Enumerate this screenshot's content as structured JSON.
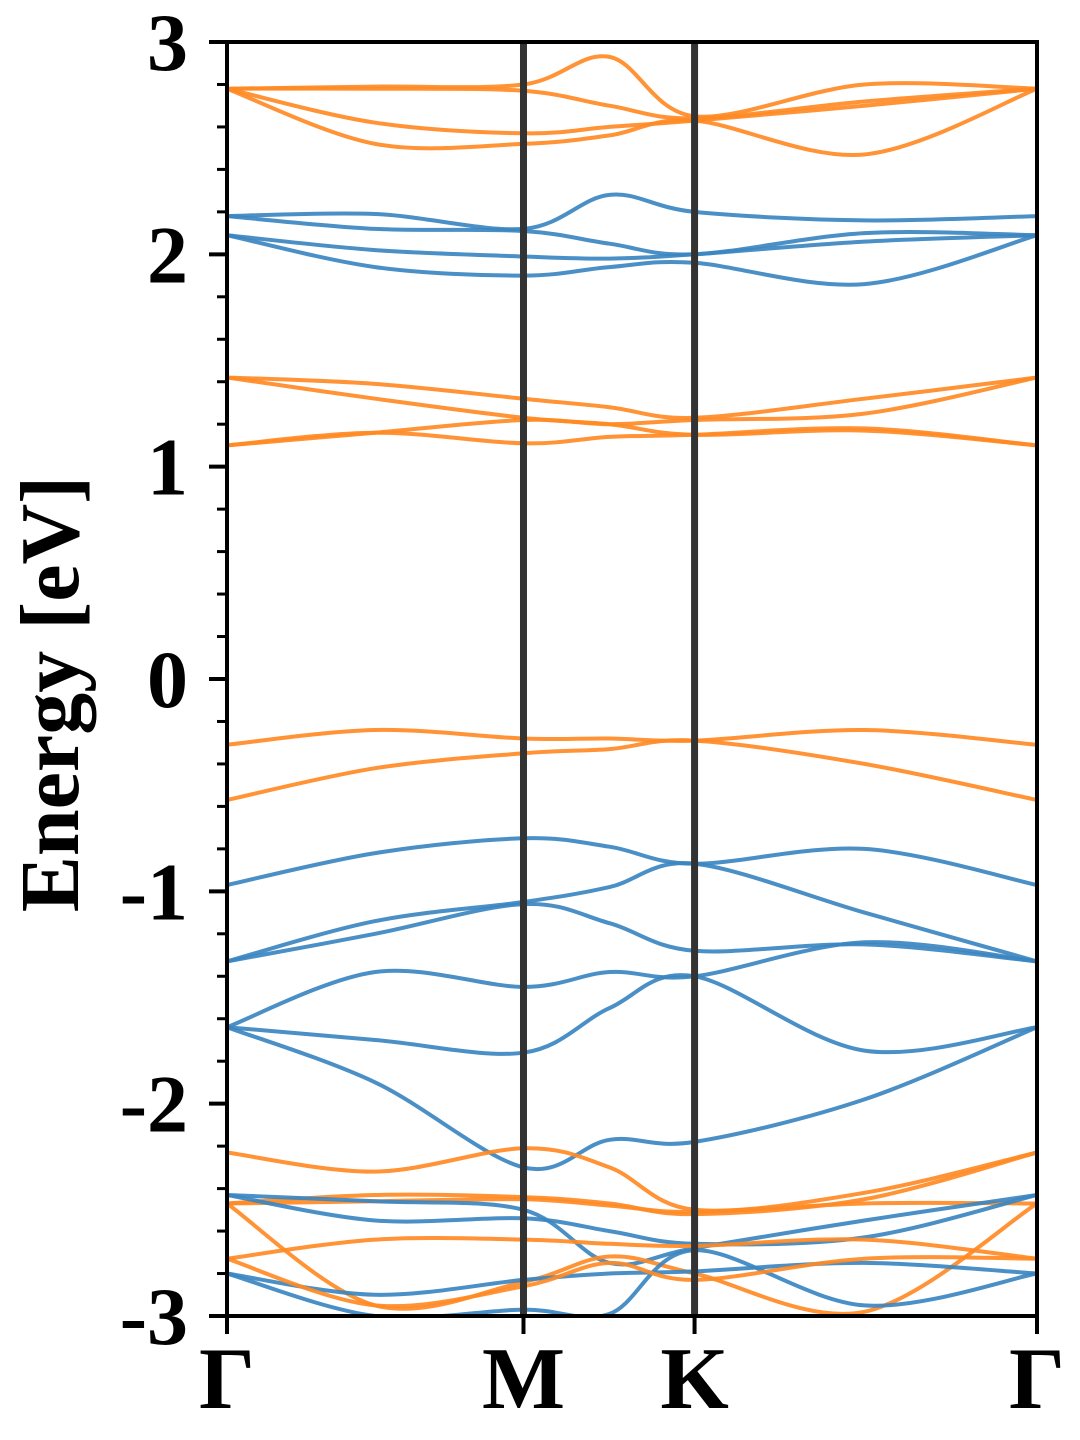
{
  "chart_data": {
    "type": "line",
    "title": "",
    "ylabel": "Energy [eV]",
    "xlabel": "",
    "ylim": [
      -3,
      3
    ],
    "yticks": [
      {
        "value": 3,
        "label": "3"
      },
      {
        "value": 2,
        "label": "2"
      },
      {
        "value": 1,
        "label": "1"
      },
      {
        "value": 0,
        "label": "0"
      },
      {
        "value": -1,
        "label": "-1"
      },
      {
        "value": -2,
        "label": "-2"
      },
      {
        "value": -3,
        "label": "-3"
      }
    ],
    "minor_ytick_step": 0.2,
    "high_symmetry_points": [
      {
        "label": "Γ",
        "k": 0.0
      },
      {
        "label": "M",
        "k": 1.0
      },
      {
        "label": "K",
        "k": 1.577
      },
      {
        "label": "Γ",
        "k": 2.732
      }
    ],
    "colors": {
      "blue": "#3b86c0",
      "orange": "#ff8a24",
      "kline": "#333333"
    },
    "k_nodes": [
      0.0,
      0.5,
      1.0,
      1.29,
      1.577,
      2.15,
      2.732
    ],
    "bands": [
      {
        "color": "orange",
        "energies": [
          2.78,
          2.79,
          2.8,
          2.93,
          2.65,
          2.8,
          2.78
        ]
      },
      {
        "color": "orange",
        "energies": [
          2.78,
          2.78,
          2.77,
          2.7,
          2.64,
          2.72,
          2.78
        ]
      },
      {
        "color": "orange",
        "energies": [
          2.78,
          2.62,
          2.57,
          2.6,
          2.63,
          2.7,
          2.78
        ]
      },
      {
        "color": "orange",
        "energies": [
          2.78,
          2.52,
          2.52,
          2.56,
          2.63,
          2.47,
          2.78
        ]
      },
      {
        "color": "blue",
        "energies": [
          2.18,
          2.19,
          2.12,
          2.28,
          2.2,
          2.16,
          2.18
        ]
      },
      {
        "color": "blue",
        "energies": [
          2.18,
          2.12,
          2.11,
          2.05,
          2.0,
          2.1,
          2.09
        ]
      },
      {
        "color": "blue",
        "energies": [
          2.09,
          2.02,
          1.99,
          1.98,
          2.0,
          2.06,
          2.09
        ]
      },
      {
        "color": "blue",
        "energies": [
          2.09,
          1.94,
          1.9,
          1.94,
          1.96,
          1.86,
          2.09
        ]
      },
      {
        "color": "orange",
        "energies": [
          1.42,
          1.39,
          1.32,
          1.28,
          1.23,
          1.32,
          1.42
        ]
      },
      {
        "color": "orange",
        "energies": [
          1.42,
          1.32,
          1.23,
          1.2,
          1.15,
          1.17,
          1.1
        ]
      },
      {
        "color": "orange",
        "energies": [
          1.1,
          1.16,
          1.22,
          1.2,
          1.22,
          1.25,
          1.42
        ]
      },
      {
        "color": "orange",
        "energies": [
          1.1,
          1.16,
          1.11,
          1.14,
          1.15,
          1.18,
          1.1
        ]
      },
      {
        "color": "orange",
        "energies": [
          -0.31,
          -0.24,
          -0.28,
          -0.28,
          -0.29,
          -0.24,
          -0.31
        ]
      },
      {
        "color": "orange",
        "energies": [
          -0.57,
          -0.42,
          -0.35,
          -0.33,
          -0.29,
          -0.4,
          -0.57
        ]
      },
      {
        "color": "blue",
        "energies": [
          -0.97,
          -0.82,
          -0.75,
          -0.79,
          -0.87,
          -0.8,
          -0.97
        ]
      },
      {
        "color": "blue",
        "energies": [
          -1.33,
          -1.14,
          -1.05,
          -0.98,
          -0.87,
          -1.1,
          -1.33
        ]
      },
      {
        "color": "blue",
        "energies": [
          -1.33,
          -1.2,
          -1.06,
          -1.15,
          -1.28,
          -1.25,
          -1.33
        ]
      },
      {
        "color": "blue",
        "energies": [
          -1.64,
          -1.38,
          -1.45,
          -1.38,
          -1.4,
          -1.24,
          -1.33
        ]
      },
      {
        "color": "blue",
        "energies": [
          -1.64,
          -1.7,
          -1.76,
          -1.55,
          -1.4,
          -1.75,
          -1.64
        ]
      },
      {
        "color": "blue",
        "energies": [
          -1.64,
          -1.9,
          -2.3,
          -2.17,
          -2.18,
          -1.98,
          -1.64
        ]
      },
      {
        "color": "orange",
        "energies": [
          -2.23,
          -2.32,
          -2.21,
          -2.3,
          -2.5,
          -2.42,
          -2.23
        ]
      },
      {
        "color": "orange",
        "energies": [
          -2.47,
          -2.43,
          -2.44,
          -2.47,
          -2.52,
          -2.45,
          -2.23
        ]
      },
      {
        "color": "orange",
        "energies": [
          -2.47,
          -2.46,
          -2.45,
          -2.48,
          -2.51,
          -2.47,
          -2.47
        ]
      },
      {
        "color": "blue",
        "energies": [
          -2.43,
          -2.55,
          -2.54,
          -2.6,
          -2.66,
          -2.63,
          -2.43
        ]
      },
      {
        "color": "blue",
        "energies": [
          -2.43,
          -2.46,
          -2.5,
          -2.75,
          -2.68,
          -2.55,
          -2.43
        ]
      },
      {
        "color": "orange",
        "energies": [
          -2.73,
          -2.64,
          -2.64,
          -2.66,
          -2.67,
          -2.64,
          -2.73
        ]
      },
      {
        "color": "orange",
        "energies": [
          -2.47,
          -2.95,
          -2.84,
          -2.72,
          -2.8,
          -2.98,
          -2.47
        ]
      },
      {
        "color": "blue",
        "energies": [
          -2.8,
          -2.9,
          -2.83,
          -2.8,
          -2.79,
          -2.75,
          -2.8
        ]
      },
      {
        "color": "blue",
        "energies": [
          -2.8,
          -3.0,
          -2.97,
          -2.99,
          -2.69,
          -2.95,
          -2.8
        ]
      },
      {
        "color": "orange",
        "energies": [
          -2.73,
          -2.95,
          -2.86,
          -2.75,
          -2.83,
          -2.73,
          -2.73
        ]
      }
    ]
  }
}
